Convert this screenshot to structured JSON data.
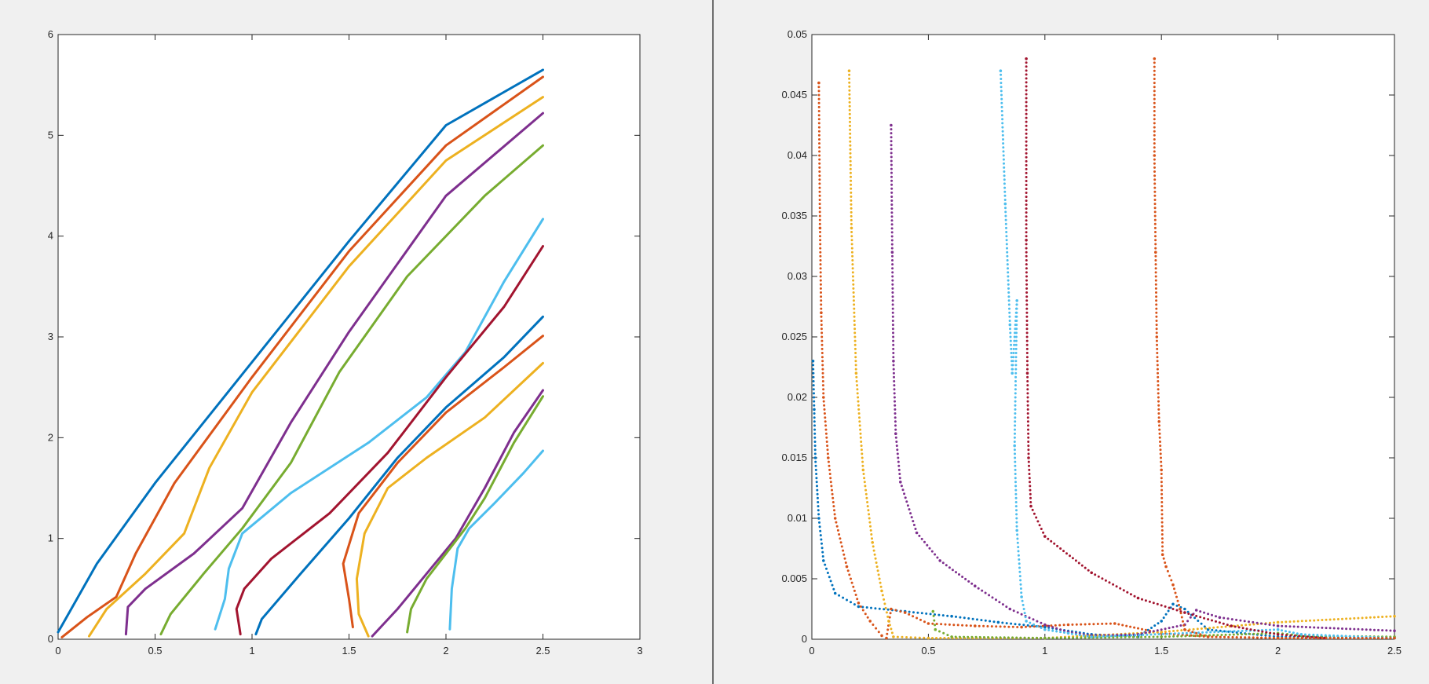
{
  "palette": {
    "blue": "#0072BD",
    "orange": "#D95319",
    "yellow": "#EDB120",
    "purple": "#7E2F8E",
    "green": "#77AC30",
    "cyan": "#4DBEEE",
    "darkred": "#A2142F"
  },
  "chart_data": [
    {
      "type": "line",
      "title": "",
      "xlabel": "",
      "ylabel": "",
      "xlim": [
        0,
        3
      ],
      "ylim": [
        0,
        6
      ],
      "x_ticks": [
        0,
        0.5,
        1,
        1.5,
        2,
        2.5,
        3
      ],
      "x_tick_labels": [
        "0",
        "0.5",
        "1",
        "1.5",
        "2",
        "2.5",
        "3"
      ],
      "y_ticks": [
        0,
        1,
        2,
        3,
        4,
        5,
        6
      ],
      "y_tick_labels": [
        "0",
        "1",
        "2",
        "3",
        "4",
        "5",
        "6"
      ],
      "grid": false,
      "series": [
        {
          "color": "blue",
          "points": [
            [
              0,
              0.07
            ],
            [
              0.2,
              0.75
            ],
            [
              0.5,
              1.55
            ],
            [
              1.0,
              2.75
            ],
            [
              1.5,
              3.95
            ],
            [
              2.0,
              5.1
            ],
            [
              2.5,
              5.65
            ]
          ]
        },
        {
          "color": "orange",
          "points": [
            [
              0.02,
              0.02
            ],
            [
              0.15,
              0.22
            ],
            [
              0.3,
              0.42
            ],
            [
              0.4,
              0.85
            ],
            [
              0.6,
              1.55
            ],
            [
              1.0,
              2.6
            ],
            [
              1.5,
              3.85
            ],
            [
              2.0,
              4.9
            ],
            [
              2.5,
              5.58
            ]
          ]
        },
        {
          "color": "yellow",
          "points": [
            [
              0.16,
              0.03
            ],
            [
              0.25,
              0.3
            ],
            [
              0.45,
              0.65
            ],
            [
              0.65,
              1.05
            ],
            [
              0.78,
              1.7
            ],
            [
              1.0,
              2.45
            ],
            [
              1.5,
              3.7
            ],
            [
              2.0,
              4.75
            ],
            [
              2.5,
              5.38
            ]
          ]
        },
        {
          "color": "purple",
          "points": [
            [
              0.35,
              0.05
            ],
            [
              0.36,
              0.32
            ],
            [
              0.45,
              0.5
            ],
            [
              0.7,
              0.85
            ],
            [
              0.95,
              1.3
            ],
            [
              1.2,
              2.15
            ],
            [
              1.5,
              3.05
            ],
            [
              2.0,
              4.4
            ],
            [
              2.5,
              5.22
            ]
          ]
        },
        {
          "color": "green",
          "points": [
            [
              0.53,
              0.05
            ],
            [
              0.58,
              0.25
            ],
            [
              0.75,
              0.65
            ],
            [
              0.95,
              1.1
            ],
            [
              1.2,
              1.75
            ],
            [
              1.45,
              2.65
            ],
            [
              1.8,
              3.6
            ],
            [
              2.2,
              4.4
            ],
            [
              2.5,
              4.9
            ]
          ]
        },
        {
          "color": "cyan",
          "points": [
            [
              0.81,
              0.1
            ],
            [
              0.86,
              0.4
            ],
            [
              0.88,
              0.7
            ],
            [
              0.95,
              1.05
            ],
            [
              1.2,
              1.45
            ],
            [
              1.6,
              1.95
            ],
            [
              1.9,
              2.4
            ],
            [
              2.1,
              2.85
            ],
            [
              2.3,
              3.55
            ],
            [
              2.5,
              4.17
            ]
          ]
        },
        {
          "color": "darkred",
          "points": [
            [
              0.94,
              0.05
            ],
            [
              0.92,
              0.3
            ],
            [
              0.96,
              0.5
            ],
            [
              1.1,
              0.8
            ],
            [
              1.4,
              1.25
            ],
            [
              1.7,
              1.85
            ],
            [
              2.0,
              2.6
            ],
            [
              2.3,
              3.3
            ],
            [
              2.5,
              3.9
            ]
          ]
        },
        {
          "color": "blue",
          "points": [
            [
              1.02,
              0.05
            ],
            [
              1.05,
              0.2
            ],
            [
              1.25,
              0.65
            ],
            [
              1.5,
              1.2
            ],
            [
              1.75,
              1.8
            ],
            [
              2.0,
              2.3
            ],
            [
              2.3,
              2.8
            ],
            [
              2.5,
              3.2
            ]
          ]
        },
        {
          "color": "orange",
          "points": [
            [
              1.52,
              0.12
            ],
            [
              1.5,
              0.4
            ],
            [
              1.47,
              0.75
            ],
            [
              1.55,
              1.25
            ],
            [
              1.75,
              1.75
            ],
            [
              2.0,
              2.25
            ],
            [
              2.3,
              2.7
            ],
            [
              2.5,
              3.01
            ]
          ]
        },
        {
          "color": "yellow",
          "points": [
            [
              1.6,
              0.03
            ],
            [
              1.55,
              0.25
            ],
            [
              1.54,
              0.6
            ],
            [
              1.58,
              1.05
            ],
            [
              1.7,
              1.5
            ],
            [
              1.9,
              1.8
            ],
            [
              2.2,
              2.2
            ],
            [
              2.5,
              2.74
            ]
          ]
        },
        {
          "color": "purple",
          "points": [
            [
              1.62,
              0.03
            ],
            [
              1.75,
              0.3
            ],
            [
              1.9,
              0.65
            ],
            [
              2.05,
              1.0
            ],
            [
              2.2,
              1.5
            ],
            [
              2.35,
              2.05
            ],
            [
              2.5,
              2.47
            ]
          ]
        },
        {
          "color": "green",
          "points": [
            [
              1.8,
              0.07
            ],
            [
              1.82,
              0.3
            ],
            [
              1.9,
              0.6
            ],
            [
              2.0,
              0.85
            ],
            [
              2.1,
              1.1
            ],
            [
              2.2,
              1.4
            ],
            [
              2.35,
              1.95
            ],
            [
              2.5,
              2.41
            ]
          ]
        },
        {
          "color": "cyan",
          "points": [
            [
              2.02,
              0.1
            ],
            [
              2.03,
              0.5
            ],
            [
              2.06,
              0.9
            ],
            [
              2.12,
              1.1
            ],
            [
              2.25,
              1.35
            ],
            [
              2.4,
              1.65
            ],
            [
              2.5,
              1.87
            ]
          ]
        }
      ]
    },
    {
      "type": "scatter",
      "title": "",
      "xlabel": "",
      "ylabel": "",
      "xlim": [
        0,
        2.5
      ],
      "ylim": [
        0,
        0.05
      ],
      "x_ticks": [
        0,
        0.5,
        1,
        1.5,
        2,
        2.5
      ],
      "x_tick_labels": [
        "0",
        "0.5",
        "1",
        "1.5",
        "2",
        "2.5"
      ],
      "y_ticks": [
        0,
        0.005,
        0.01,
        0.015,
        0.02,
        0.025,
        0.03,
        0.035,
        0.04,
        0.045,
        0.05
      ],
      "y_tick_labels": [
        "0",
        "0.005",
        "0.01",
        "0.015",
        "0.02",
        "0.025",
        "0.03",
        "0.035",
        "0.04",
        "0.045",
        "0.05"
      ],
      "grid": false,
      "series": [
        {
          "color": "blue",
          "points": [
            [
              0.005,
              0.023
            ],
            [
              0.01,
              0.019
            ],
            [
              0.015,
              0.015
            ],
            [
              0.03,
              0.01
            ],
            [
              0.05,
              0.0065
            ],
            [
              0.1,
              0.0038
            ],
            [
              0.2,
              0.0027
            ],
            [
              0.4,
              0.0023
            ],
            [
              0.6,
              0.0019
            ],
            [
              0.8,
              0.0014
            ],
            [
              1.0,
              0.001
            ],
            [
              1.2,
              0.0004
            ],
            [
              1.4,
              0.0002
            ],
            [
              1.5,
              0.0015
            ],
            [
              1.55,
              0.0029
            ],
            [
              1.6,
              0.0025
            ],
            [
              1.7,
              0.0008
            ],
            [
              2.0,
              0.0002
            ],
            [
              2.5,
              0.0001
            ]
          ]
        },
        {
          "color": "orange",
          "points": [
            [
              0.03,
              0.046
            ],
            [
              0.035,
              0.034
            ],
            [
              0.04,
              0.027
            ],
            [
              0.05,
              0.02
            ],
            [
              0.07,
              0.015
            ],
            [
              0.1,
              0.01
            ],
            [
              0.15,
              0.006
            ],
            [
              0.2,
              0.003
            ],
            [
              0.25,
              0.0015
            ],
            [
              0.3,
              0.0003
            ],
            [
              0.32,
              0.0001
            ],
            [
              0.34,
              0.0025
            ],
            [
              0.4,
              0.0022
            ],
            [
              0.5,
              0.0013
            ],
            [
              0.7,
              0.0011
            ],
            [
              0.9,
              0.001
            ],
            [
              1.1,
              0.0012
            ],
            [
              1.3,
              0.0013
            ],
            [
              1.5,
              0.0005
            ],
            [
              1.7,
              0.0002
            ],
            [
              2.0,
              0.0001
            ],
            [
              2.5,
              0.0001
            ]
          ]
        },
        {
          "color": "yellow",
          "points": [
            [
              0.16,
              0.047
            ],
            [
              0.17,
              0.034
            ],
            [
              0.19,
              0.022
            ],
            [
              0.22,
              0.014
            ],
            [
              0.26,
              0.008
            ],
            [
              0.3,
              0.004
            ],
            [
              0.33,
              0.0015
            ],
            [
              0.35,
              0.0002
            ],
            [
              0.5,
              0.0001
            ],
            [
              1.0,
              0.0001
            ],
            [
              1.5,
              0.0006
            ],
            [
              2.0,
              0.0014
            ],
            [
              2.5,
              0.0019
            ]
          ]
        },
        {
          "color": "purple",
          "points": [
            [
              0.34,
              0.0425
            ],
            [
              0.345,
              0.032
            ],
            [
              0.35,
              0.023
            ],
            [
              0.36,
              0.017
            ],
            [
              0.38,
              0.013
            ],
            [
              0.45,
              0.0088
            ],
            [
              0.55,
              0.0065
            ],
            [
              0.7,
              0.0044
            ],
            [
              0.85,
              0.0025
            ],
            [
              1.0,
              0.0012
            ],
            [
              1.1,
              0.0006
            ],
            [
              1.2,
              0.0003
            ],
            [
              1.4,
              0.0004
            ],
            [
              1.6,
              0.0012
            ],
            [
              1.65,
              0.0024
            ],
            [
              1.75,
              0.0018
            ],
            [
              2.0,
              0.0011
            ],
            [
              2.5,
              0.0007
            ]
          ]
        },
        {
          "color": "green",
          "points": [
            [
              0.52,
              0.0023
            ],
            [
              0.53,
              0.0008
            ],
            [
              0.6,
              0.0002
            ],
            [
              1.0,
              0.0001
            ],
            [
              1.5,
              0.0002
            ],
            [
              2.0,
              0.0005
            ],
            [
              2.1,
              0.0003
            ],
            [
              2.5,
              0.0002
            ]
          ]
        },
        {
          "color": "cyan",
          "points": [
            [
              0.81,
              0.047
            ],
            [
              0.83,
              0.036
            ],
            [
              0.85,
              0.026
            ],
            [
              0.86,
              0.022
            ],
            [
              0.88,
              0.028
            ],
            [
              0.87,
              0.016
            ],
            [
              0.88,
              0.009
            ],
            [
              0.9,
              0.0035
            ],
            [
              0.92,
              0.0015
            ],
            [
              1.0,
              0.0008
            ],
            [
              1.1,
              0.0005
            ],
            [
              1.2,
              0.0002
            ],
            [
              2.0,
              0.0008
            ],
            [
              2.1,
              0.0004
            ],
            [
              2.5,
              0.0001
            ]
          ]
        },
        {
          "color": "darkred",
          "points": [
            [
              0.92,
              0.048
            ],
            [
              0.92,
              0.033
            ],
            [
              0.925,
              0.022
            ],
            [
              0.93,
              0.015
            ],
            [
              0.94,
              0.011
            ],
            [
              1.0,
              0.0085
            ],
            [
              1.2,
              0.0055
            ],
            [
              1.4,
              0.0034
            ],
            [
              1.6,
              0.0022
            ],
            [
              1.8,
              0.0011
            ],
            [
              2.0,
              0.0004
            ],
            [
              2.2,
              0.0001
            ]
          ]
        },
        {
          "color": "orange",
          "points": [
            [
              1.47,
              0.048
            ],
            [
              1.47,
              0.04
            ],
            [
              1.475,
              0.032
            ],
            [
              1.48,
              0.025
            ],
            [
              1.49,
              0.018
            ],
            [
              1.5,
              0.014
            ],
            [
              1.505,
              0.007
            ],
            [
              1.52,
              0.006
            ],
            [
              1.55,
              0.0045
            ],
            [
              1.58,
              0.0025
            ],
            [
              1.6,
              0.0008
            ],
            [
              1.7,
              0.0002
            ],
            [
              2.0,
              0.0001
            ],
            [
              2.5,
              0.0001
            ]
          ]
        }
      ]
    }
  ]
}
